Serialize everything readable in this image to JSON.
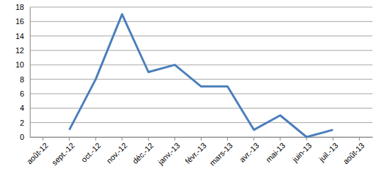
{
  "chart_data": {
    "type": "line",
    "categories": [
      "août-12",
      "sept.-12",
      "oct.-12",
      "nov.-12",
      "déc.-12",
      "janv.-13",
      "févr.-13",
      "mars-13",
      "avr.-13",
      "mai-13",
      "juin-13",
      "juil.-13",
      "août-13"
    ],
    "values": [
      null,
      1,
      8,
      17,
      9,
      10,
      7,
      7,
      1,
      3,
      0,
      1,
      null
    ],
    "color": "#4a7ebb",
    "ylim": [
      0,
      18
    ],
    "yticks": [
      0,
      2,
      4,
      6,
      8,
      10,
      12,
      14,
      16,
      18
    ],
    "grid": true
  }
}
